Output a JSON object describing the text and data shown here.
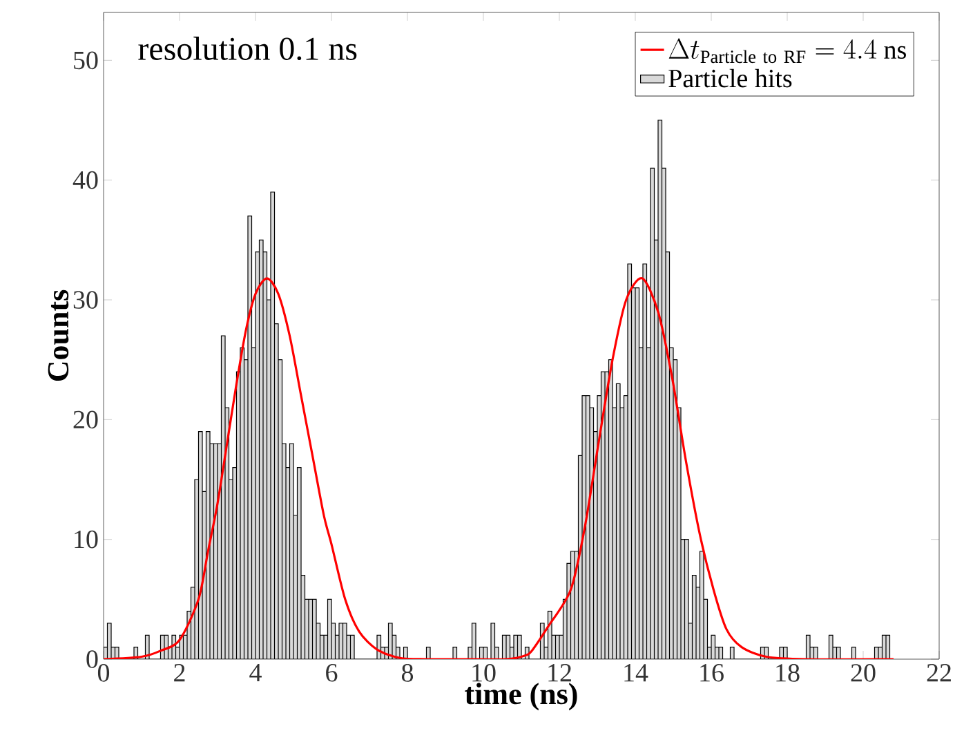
{
  "chart_data": {
    "type": "histogram",
    "xlabel": "time (ns)",
    "ylabel": "Counts",
    "annotations": [
      "resolution 0.1 ns"
    ],
    "xlim": [
      0,
      22
    ],
    "ylim": [
      0,
      54
    ],
    "xticks": [
      0,
      2,
      4,
      6,
      8,
      10,
      12,
      14,
      16,
      18,
      20,
      22
    ],
    "yticks": [
      0,
      10,
      20,
      30,
      40,
      50
    ],
    "legend": "top right",
    "series": [
      {
        "name": "Particle hits",
        "color": "#d9d9d9",
        "bins": [
          0,
          0.1,
          0.2,
          0.3,
          0.4,
          0.5,
          0.6,
          0.7,
          0.8,
          0.9,
          1,
          1.1,
          1.2,
          1.3,
          1.4,
          1.5,
          1.6,
          1.7,
          1.8,
          1.9,
          2,
          2.1,
          2.2,
          2.3,
          2.4,
          2.5,
          2.6,
          2.7,
          2.8,
          2.9,
          3,
          3.1,
          3.2,
          3.3,
          3.4,
          3.5,
          3.6,
          3.7,
          3.8,
          3.9,
          4,
          4.1,
          4.2,
          4.3,
          4.4,
          4.5,
          4.6,
          4.7,
          4.8,
          4.9,
          5,
          5.1,
          5.2,
          5.3,
          5.4,
          5.5,
          5.6,
          5.7,
          5.8,
          5.9,
          6,
          6.1,
          6.2,
          6.3,
          6.4,
          6.5,
          6.6,
          6.7,
          6.8,
          6.9,
          7,
          7.1,
          7.2,
          7.3,
          7.4,
          7.5,
          7.6,
          7.7,
          7.8,
          7.9,
          8,
          8.1,
          8.2,
          8.3,
          8.4,
          8.5,
          8.6,
          8.7,
          8.8,
          8.9,
          9,
          9.1,
          9.2,
          9.3,
          9.4,
          9.5,
          9.6,
          9.7,
          9.8,
          9.9,
          10,
          10.1,
          10.2,
          10.3,
          10.4,
          10.5,
          10.6,
          10.7,
          10.8,
          10.9,
          11,
          11.1,
          11.2,
          11.3,
          11.4,
          11.5,
          11.6,
          11.7,
          11.8,
          11.9,
          12,
          12.1,
          12.2,
          12.3,
          12.4,
          12.5,
          12.6,
          12.7,
          12.8,
          12.9,
          13,
          13.1,
          13.2,
          13.3,
          13.4,
          13.5,
          13.6,
          13.7,
          13.8,
          13.9,
          14,
          14.1,
          14.2,
          14.3,
          14.4,
          14.5,
          14.6,
          14.7,
          14.8,
          14.9,
          15,
          15.1,
          15.2,
          15.3,
          15.4,
          15.5,
          15.6,
          15.7,
          15.8,
          15.9,
          16,
          16.1,
          16.2,
          16.3,
          16.4,
          16.5,
          16.6,
          16.7,
          16.8,
          16.9,
          17,
          17.1,
          17.2,
          17.3,
          17.4,
          17.5,
          17.6,
          17.7,
          17.8,
          17.9,
          18,
          18.1,
          18.2,
          18.3,
          18.4,
          18.5,
          18.6,
          18.7,
          18.8,
          18.9,
          19,
          19.1,
          19.2,
          19.3,
          19.4,
          19.5,
          19.6,
          19.7,
          19.8,
          19.9,
          20,
          20.1,
          20.2,
          20.3,
          20.4,
          20.5,
          20.6,
          20.7,
          20.8
        ],
        "values": [
          1,
          3,
          1,
          1,
          0,
          0,
          0,
          0,
          1,
          0,
          0,
          2,
          0,
          0,
          0,
          2,
          2,
          1,
          2,
          1,
          2,
          2,
          4,
          6,
          15,
          19,
          14,
          19,
          18,
          18,
          18,
          27,
          21,
          15,
          16,
          24,
          26,
          25,
          37,
          26,
          34,
          35,
          34,
          30,
          39,
          28,
          25,
          18,
          16,
          18,
          12,
          16,
          7,
          5,
          5,
          5,
          3,
          2,
          2,
          5,
          3,
          2,
          3,
          3,
          2,
          2,
          0,
          0,
          0,
          0,
          0,
          0,
          2,
          1,
          1,
          3,
          2,
          1,
          0,
          1,
          0,
          0,
          0,
          0,
          0,
          1,
          0,
          0,
          0,
          0,
          0,
          0,
          1,
          0,
          0,
          0,
          1,
          3,
          0,
          1,
          1,
          0,
          3,
          1,
          0,
          2,
          2,
          1,
          2,
          2,
          0,
          1,
          0,
          0,
          0,
          3,
          1,
          4,
          2,
          2,
          2,
          5,
          8,
          9,
          9,
          17,
          22,
          22,
          21,
          19,
          22,
          24,
          24,
          25,
          21,
          23,
          21,
          22,
          33,
          31,
          31,
          26,
          33,
          26,
          41,
          35,
          45,
          41,
          34,
          26,
          25,
          21,
          10,
          10,
          3,
          7,
          6,
          9,
          5,
          1,
          2,
          1,
          1,
          0,
          0,
          1,
          0,
          0,
          0,
          0,
          0,
          0,
          0,
          1,
          1,
          0,
          0,
          0,
          1,
          1,
          0,
          0,
          0,
          0,
          0,
          2,
          1,
          1,
          0,
          0,
          0,
          2,
          1,
          1,
          0,
          0,
          0,
          1,
          0,
          0,
          0,
          0,
          0,
          1,
          1,
          2,
          2,
          0
        ]
      },
      {
        "type": "line",
        "name": "\\Delta t_{\\mathrm{Particle\\ to\\ RF}} = 4.4\\ \\mathrm{ns}",
        "color": "#ff0000",
        "x": [
          0,
          1,
          1.5,
          2,
          2.5,
          2.75,
          3,
          3.25,
          3.5,
          3.75,
          4,
          4.3,
          4.6,
          4.9,
          5.2,
          5.5,
          5.8,
          6,
          6.36,
          6.73,
          7.2,
          7.8,
          8.5,
          9.5,
          10.6,
          11.1,
          11.3,
          11.7,
          12.3,
          12.67,
          13.03,
          13.4,
          13.76,
          14.18,
          14.6,
          14.97,
          15.33,
          15.7,
          16.06,
          16.4,
          16.8,
          17.45,
          18.5,
          20.8
        ],
        "values": [
          0,
          0.2,
          0.7,
          1.6,
          5,
          9,
          13,
          18,
          23,
          27.5,
          30.5,
          31.8,
          30.5,
          27,
          22,
          17,
          12,
          9.6,
          5,
          2.3,
          0.8,
          0.1,
          0,
          0,
          0,
          0.3,
          0.8,
          2.7,
          5.8,
          11,
          18,
          25,
          30,
          31.8,
          29,
          23.5,
          16.6,
          10.4,
          5.8,
          2.5,
          1,
          0.2,
          0,
          0
        ]
      }
    ]
  }
}
